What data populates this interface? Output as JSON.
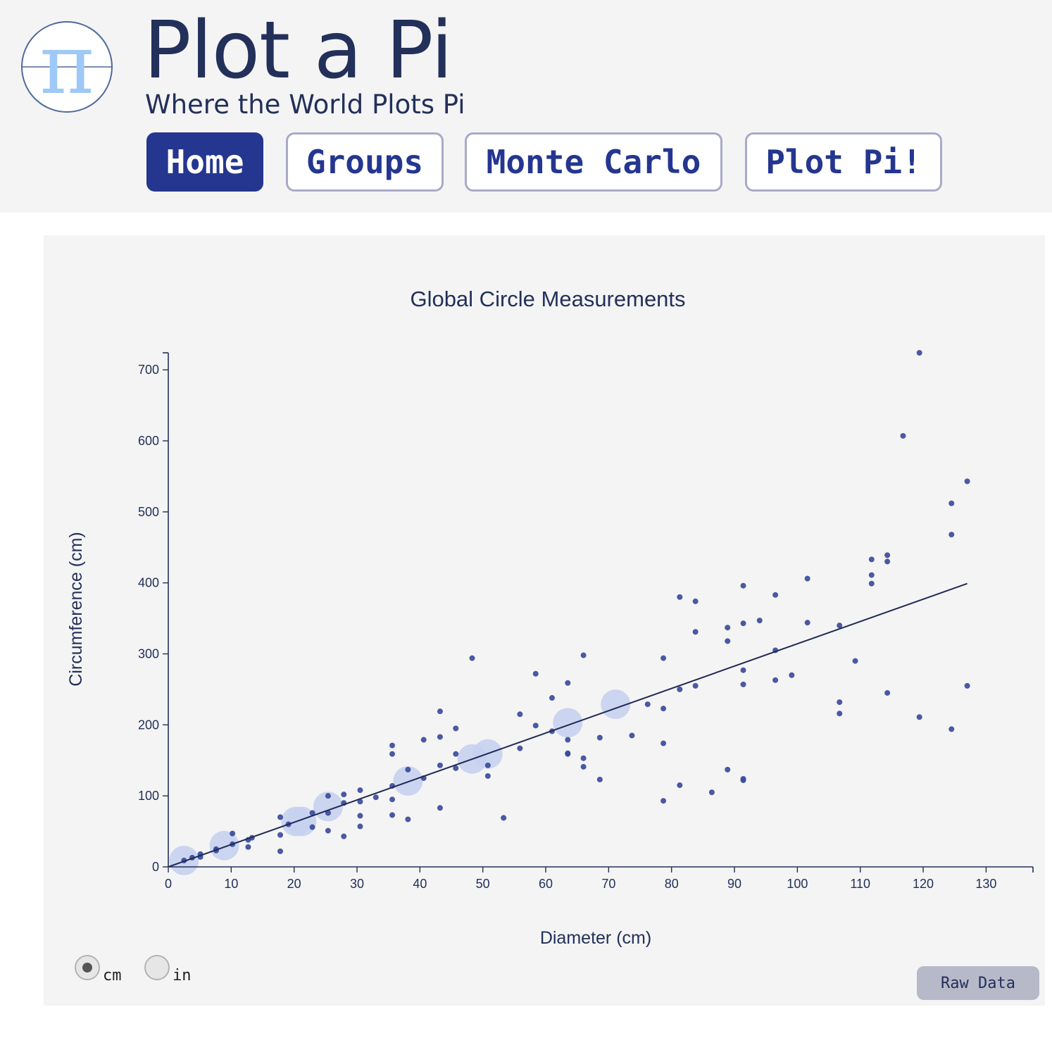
{
  "header": {
    "logo_icon": "pi-icon",
    "title": "Plot a Pi",
    "subtitle": "Where the World Plots Pi"
  },
  "nav": [
    {
      "label": "Home",
      "active": true
    },
    {
      "label": "Groups",
      "active": false
    },
    {
      "label": "Monte Carlo",
      "active": false
    },
    {
      "label": "Plot Pi!",
      "active": false
    }
  ],
  "units": {
    "options": [
      {
        "label": "cm",
        "checked": true
      },
      {
        "label": "in",
        "checked": false
      }
    ]
  },
  "raw_data_label": "Raw Data",
  "colors": {
    "accent": "#24368f",
    "point": "#3b4b9b",
    "highlight": "#c7d1ef",
    "line": "#1f2a55",
    "logo": "#9ec9f7"
  },
  "chart_data": {
    "type": "scatter",
    "title": "Global Circle Measurements",
    "xlabel": "Diameter (cm)",
    "ylabel": "Circumference (cm)",
    "xlim": [
      0,
      136
    ],
    "ylim": [
      0,
      724
    ],
    "xticks": [
      0,
      10,
      20,
      30,
      40,
      50,
      60,
      70,
      80,
      90,
      100,
      110,
      120,
      130
    ],
    "yticks": [
      0,
      100,
      200,
      300,
      400,
      500,
      600,
      700
    ],
    "grid": false,
    "fit_line": {
      "x": [
        0,
        127
      ],
      "y": [
        0,
        399
      ]
    },
    "highlights": [
      {
        "x": 2.5,
        "y": 9
      },
      {
        "x": 8.9,
        "y": 30
      },
      {
        "x": 20.3,
        "y": 64
      },
      {
        "x": 21.2,
        "y": 64
      },
      {
        "x": 25.4,
        "y": 85
      },
      {
        "x": 38.1,
        "y": 121
      },
      {
        "x": 48.3,
        "y": 152
      },
      {
        "x": 50.8,
        "y": 159
      },
      {
        "x": 63.5,
        "y": 203
      },
      {
        "x": 71.1,
        "y": 229
      }
    ],
    "points": [
      [
        2.5,
        9
      ],
      [
        3.8,
        13
      ],
      [
        5.1,
        14
      ],
      [
        5.1,
        18
      ],
      [
        7.6,
        23
      ],
      [
        7.6,
        25
      ],
      [
        10.2,
        32
      ],
      [
        10.2,
        47
      ],
      [
        12.7,
        28
      ],
      [
        12.7,
        38
      ],
      [
        13.3,
        41
      ],
      [
        17.8,
        22
      ],
      [
        17.8,
        45
      ],
      [
        17.8,
        70
      ],
      [
        19.1,
        60
      ],
      [
        22.9,
        76
      ],
      [
        22.9,
        56
      ],
      [
        25.4,
        51
      ],
      [
        25.4,
        76
      ],
      [
        25.4,
        100
      ],
      [
        27.9,
        43
      ],
      [
        27.9,
        102
      ],
      [
        27.9,
        90
      ],
      [
        30.5,
        57
      ],
      [
        30.5,
        72
      ],
      [
        30.5,
        92
      ],
      [
        30.5,
        108
      ],
      [
        33,
        98
      ],
      [
        35.6,
        73
      ],
      [
        35.6,
        95
      ],
      [
        35.6,
        114
      ],
      [
        35.6,
        159
      ],
      [
        35.6,
        171
      ],
      [
        38.1,
        67
      ],
      [
        38.1,
        137
      ],
      [
        40.6,
        125
      ],
      [
        40.6,
        179
      ],
      [
        43.2,
        83
      ],
      [
        43.2,
        143
      ],
      [
        43.2,
        183
      ],
      [
        43.2,
        219
      ],
      [
        45.7,
        139
      ],
      [
        45.7,
        159
      ],
      [
        45.7,
        195
      ],
      [
        48.3,
        294
      ],
      [
        50.8,
        128
      ],
      [
        50.8,
        143
      ],
      [
        53.3,
        69
      ],
      [
        55.9,
        167
      ],
      [
        55.9,
        215
      ],
      [
        58.4,
        199
      ],
      [
        58.4,
        272
      ],
      [
        61,
        191
      ],
      [
        61,
        238
      ],
      [
        63.5,
        159
      ],
      [
        63.5,
        160
      ],
      [
        63.5,
        179
      ],
      [
        63.5,
        259
      ],
      [
        66,
        141
      ],
      [
        66,
        153
      ],
      [
        66,
        298
      ],
      [
        68.6,
        123
      ],
      [
        68.6,
        182
      ],
      [
        73.7,
        185
      ],
      [
        76.2,
        229
      ],
      [
        78.7,
        93
      ],
      [
        78.7,
        174
      ],
      [
        78.7,
        223
      ],
      [
        78.7,
        294
      ],
      [
        81.3,
        115
      ],
      [
        81.3,
        250
      ],
      [
        81.3,
        380
      ],
      [
        83.8,
        255
      ],
      [
        83.8,
        331
      ],
      [
        83.8,
        374
      ],
      [
        86.4,
        105
      ],
      [
        88.9,
        137
      ],
      [
        88.9,
        318
      ],
      [
        88.9,
        337
      ],
      [
        91.4,
        122
      ],
      [
        91.4,
        124
      ],
      [
        91.4,
        257
      ],
      [
        91.4,
        277
      ],
      [
        91.4,
        343
      ],
      [
        91.4,
        396
      ],
      [
        94,
        347
      ],
      [
        96.5,
        263
      ],
      [
        96.5,
        305
      ],
      [
        96.5,
        383
      ],
      [
        99.1,
        270
      ],
      [
        101.6,
        344
      ],
      [
        101.6,
        406
      ],
      [
        106.7,
        216
      ],
      [
        106.7,
        232
      ],
      [
        106.7,
        340
      ],
      [
        109.2,
        290
      ],
      [
        111.8,
        399
      ],
      [
        111.8,
        411
      ],
      [
        111.8,
        433
      ],
      [
        114.3,
        245
      ],
      [
        114.3,
        430
      ],
      [
        114.3,
        439
      ],
      [
        116.8,
        607
      ],
      [
        119.4,
        211
      ],
      [
        119.4,
        724
      ],
      [
        124.5,
        194
      ],
      [
        124.5,
        468
      ],
      [
        124.5,
        512
      ],
      [
        127,
        255
      ],
      [
        127,
        543
      ]
    ]
  }
}
